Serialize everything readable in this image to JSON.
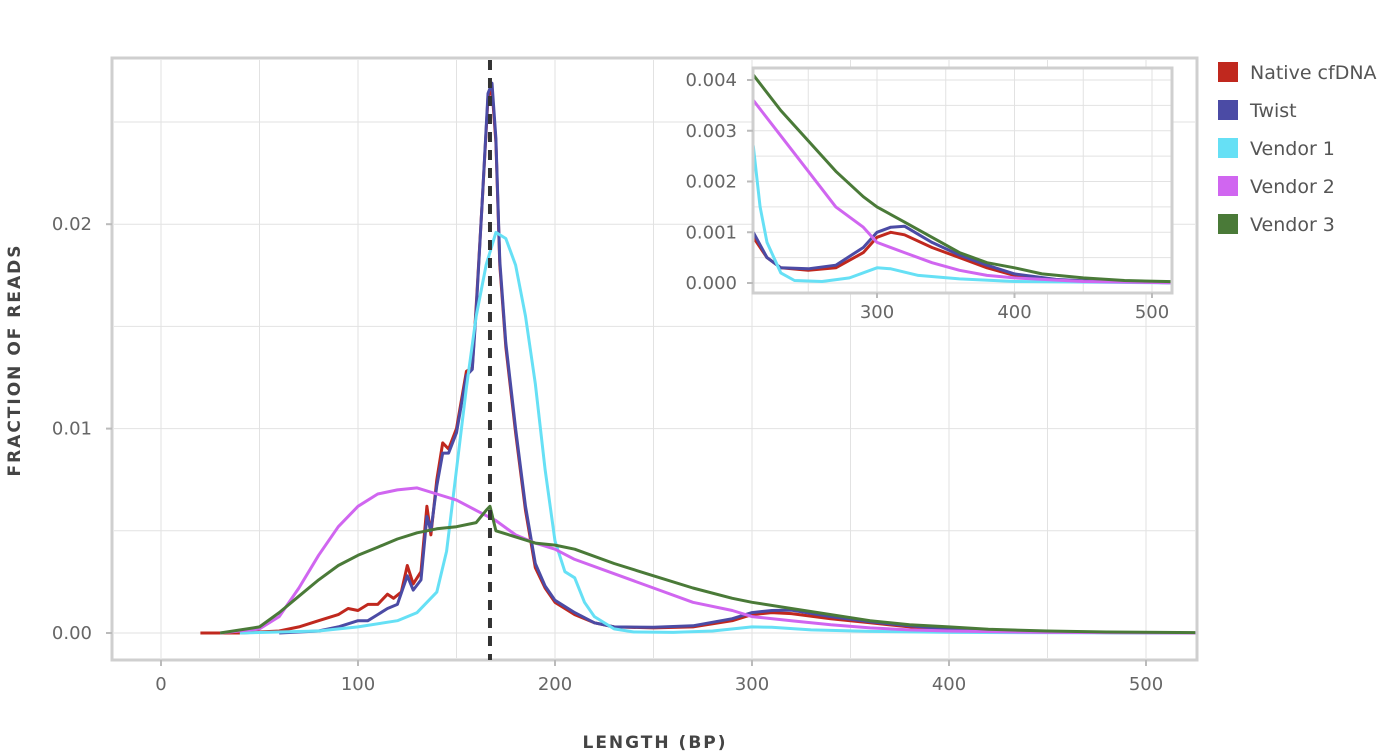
{
  "chart_data": [
    {
      "type": "line",
      "xlabel": "LENGTH (BP)",
      "ylabel": "FRACTION OF READS",
      "xlim": [
        -25,
        525
      ],
      "ylim": [
        -0.0013,
        0.0282
      ],
      "xticks": [
        "0",
        "100",
        "200",
        "300",
        "400",
        "500"
      ],
      "yticks": [
        "0.00",
        "0.01",
        "0.02"
      ],
      "grid": true,
      "legend_position": "right",
      "reference_line": {
        "x": 167,
        "style": "dashed",
        "color": "#333333"
      },
      "series": [
        {
          "name": "Native cfDNA",
          "color": "#c0281e",
          "points": [
            [
              20,
              0
            ],
            [
              40,
              0
            ],
            [
              60,
              0.0001
            ],
            [
              70,
              0.0003
            ],
            [
              80,
              0.0006
            ],
            [
              90,
              0.0009
            ],
            [
              95,
              0.0012
            ],
            [
              100,
              0.0011
            ],
            [
              105,
              0.0014
            ],
            [
              110,
              0.0014
            ],
            [
              115,
              0.0019
            ],
            [
              118,
              0.0017
            ],
            [
              122,
              0.002
            ],
            [
              125,
              0.0033
            ],
            [
              128,
              0.0024
            ],
            [
              132,
              0.003
            ],
            [
              135,
              0.0062
            ],
            [
              137,
              0.0048
            ],
            [
              140,
              0.0075
            ],
            [
              143,
              0.0093
            ],
            [
              146,
              0.009
            ],
            [
              150,
              0.01
            ],
            [
              155,
              0.0128
            ],
            [
              158,
              0.013
            ],
            [
              160,
              0.016
            ],
            [
              163,
              0.021
            ],
            [
              166,
              0.0262
            ],
            [
              168,
              0.0266
            ],
            [
              170,
              0.024
            ],
            [
              172,
              0.018
            ],
            [
              175,
              0.014
            ],
            [
              180,
              0.0098
            ],
            [
              185,
              0.006
            ],
            [
              190,
              0.0032
            ],
            [
              195,
              0.0022
            ],
            [
              200,
              0.0015
            ],
            [
              210,
              0.0009
            ],
            [
              220,
              0.0005
            ],
            [
              230,
              0.0003
            ],
            [
              250,
              0.00025
            ],
            [
              270,
              0.0003
            ],
            [
              290,
              0.0006
            ],
            [
              300,
              0.0009
            ],
            [
              310,
              0.001
            ],
            [
              320,
              0.00095
            ],
            [
              340,
              0.0007
            ],
            [
              360,
              0.0005
            ],
            [
              380,
              0.0003
            ],
            [
              400,
              0.00015
            ],
            [
              430,
              6e-05
            ],
            [
              460,
              3e-05
            ],
            [
              525,
              0
            ]
          ]
        },
        {
          "name": "Twist",
          "color": "#4b4ba5",
          "points": [
            [
              60,
              0
            ],
            [
              80,
              0.0001
            ],
            [
              90,
              0.0003
            ],
            [
              100,
              0.0006
            ],
            [
              105,
              0.0006
            ],
            [
              110,
              0.0009
            ],
            [
              115,
              0.0012
            ],
            [
              120,
              0.0014
            ],
            [
              125,
              0.0028
            ],
            [
              128,
              0.0021
            ],
            [
              132,
              0.0026
            ],
            [
              135,
              0.0057
            ],
            [
              137,
              0.005
            ],
            [
              140,
              0.0072
            ],
            [
              143,
              0.0088
            ],
            [
              146,
              0.0088
            ],
            [
              150,
              0.0098
            ],
            [
              155,
              0.0126
            ],
            [
              158,
              0.0129
            ],
            [
              160,
              0.0158
            ],
            [
              163,
              0.021
            ],
            [
              166,
              0.0264
            ],
            [
              168,
              0.0269
            ],
            [
              170,
              0.0242
            ],
            [
              172,
              0.0182
            ],
            [
              175,
              0.0142
            ],
            [
              180,
              0.01
            ],
            [
              185,
              0.0062
            ],
            [
              190,
              0.0034
            ],
            [
              195,
              0.0023
            ],
            [
              200,
              0.0016
            ],
            [
              210,
              0.001
            ],
            [
              220,
              0.0005
            ],
            [
              230,
              0.0003
            ],
            [
              250,
              0.00028
            ],
            [
              270,
              0.00035
            ],
            [
              290,
              0.0007
            ],
            [
              300,
              0.001
            ],
            [
              310,
              0.0011
            ],
            [
              320,
              0.00112
            ],
            [
              340,
              0.0008
            ],
            [
              360,
              0.00055
            ],
            [
              380,
              0.00035
            ],
            [
              400,
              0.00018
            ],
            [
              430,
              7e-05
            ],
            [
              460,
              3e-05
            ],
            [
              525,
              0
            ]
          ]
        },
        {
          "name": "Vendor 1",
          "color": "#66e0f5",
          "points": [
            [
              40,
              0
            ],
            [
              80,
              0.0001
            ],
            [
              100,
              0.0003
            ],
            [
              120,
              0.0006
            ],
            [
              130,
              0.001
            ],
            [
              140,
              0.002
            ],
            [
              145,
              0.004
            ],
            [
              150,
              0.008
            ],
            [
              155,
              0.012
            ],
            [
              160,
              0.0155
            ],
            [
              165,
              0.018
            ],
            [
              170,
              0.0196
            ],
            [
              175,
              0.0193
            ],
            [
              180,
              0.018
            ],
            [
              185,
              0.0155
            ],
            [
              190,
              0.0122
            ],
            [
              195,
              0.008
            ],
            [
              200,
              0.0045
            ],
            [
              205,
              0.003
            ],
            [
              210,
              0.0027
            ],
            [
              215,
              0.0015
            ],
            [
              220,
              0.0008
            ],
            [
              230,
              0.0002
            ],
            [
              240,
              5e-05
            ],
            [
              260,
              3e-05
            ],
            [
              280,
              0.0001
            ],
            [
              300,
              0.0003
            ],
            [
              310,
              0.00028
            ],
            [
              330,
              0.00015
            ],
            [
              360,
              8e-05
            ],
            [
              400,
              3e-05
            ],
            [
              525,
              0
            ]
          ]
        },
        {
          "name": "Vendor 2",
          "color": "#d066f0",
          "points": [
            [
              30,
              0
            ],
            [
              50,
              0.0002
            ],
            [
              60,
              0.0008
            ],
            [
              70,
              0.0022
            ],
            [
              80,
              0.0038
            ],
            [
              90,
              0.0052
            ],
            [
              100,
              0.0062
            ],
            [
              110,
              0.0068
            ],
            [
              120,
              0.007
            ],
            [
              130,
              0.0071
            ],
            [
              140,
              0.0068
            ],
            [
              150,
              0.0065
            ],
            [
              160,
              0.006
            ],
            [
              170,
              0.0055
            ],
            [
              180,
              0.0048
            ],
            [
              190,
              0.0044
            ],
            [
              200,
              0.0041
            ],
            [
              210,
              0.0036
            ],
            [
              230,
              0.0029
            ],
            [
              250,
              0.0022
            ],
            [
              270,
              0.0015
            ],
            [
              290,
              0.0011
            ],
            [
              300,
              0.0008
            ],
            [
              320,
              0.0006
            ],
            [
              340,
              0.0004
            ],
            [
              360,
              0.00025
            ],
            [
              380,
              0.00015
            ],
            [
              400,
              0.0001
            ],
            [
              450,
              3e-05
            ],
            [
              525,
              0
            ]
          ]
        },
        {
          "name": "Vendor 3",
          "color": "#4a7a38",
          "points": [
            [
              30,
              0
            ],
            [
              50,
              0.0003
            ],
            [
              60,
              0.001
            ],
            [
              70,
              0.0018
            ],
            [
              80,
              0.0026
            ],
            [
              90,
              0.0033
            ],
            [
              100,
              0.0038
            ],
            [
              110,
              0.0042
            ],
            [
              120,
              0.0046
            ],
            [
              130,
              0.0049
            ],
            [
              140,
              0.0051
            ],
            [
              150,
              0.0052
            ],
            [
              160,
              0.0054
            ],
            [
              165,
              0.006
            ],
            [
              167,
              0.0062
            ],
            [
              170,
              0.005
            ],
            [
              180,
              0.0047
            ],
            [
              190,
              0.0044
            ],
            [
              200,
              0.0043
            ],
            [
              210,
              0.0041
            ],
            [
              230,
              0.0034
            ],
            [
              250,
              0.0028
            ],
            [
              270,
              0.0022
            ],
            [
              290,
              0.0017
            ],
            [
              300,
              0.0015
            ],
            [
              320,
              0.0012
            ],
            [
              340,
              0.0009
            ],
            [
              360,
              0.0006
            ],
            [
              380,
              0.0004
            ],
            [
              400,
              0.0003
            ],
            [
              420,
              0.00018
            ],
            [
              450,
              0.0001
            ],
            [
              480,
              5e-05
            ],
            [
              525,
              2e-05
            ]
          ]
        }
      ]
    },
    {
      "type": "line",
      "inset": true,
      "xlim": [
        210,
        514
      ],
      "ylim": [
        -0.0001,
        0.0041
      ],
      "xticks": [
        "300",
        "400",
        "500"
      ],
      "yticks": [
        "0.000",
        "0.001",
        "0.002",
        "0.003",
        "0.004"
      ],
      "grid": true,
      "note_series": "same series as main chart, zoomed to x 210–514"
    }
  ]
}
